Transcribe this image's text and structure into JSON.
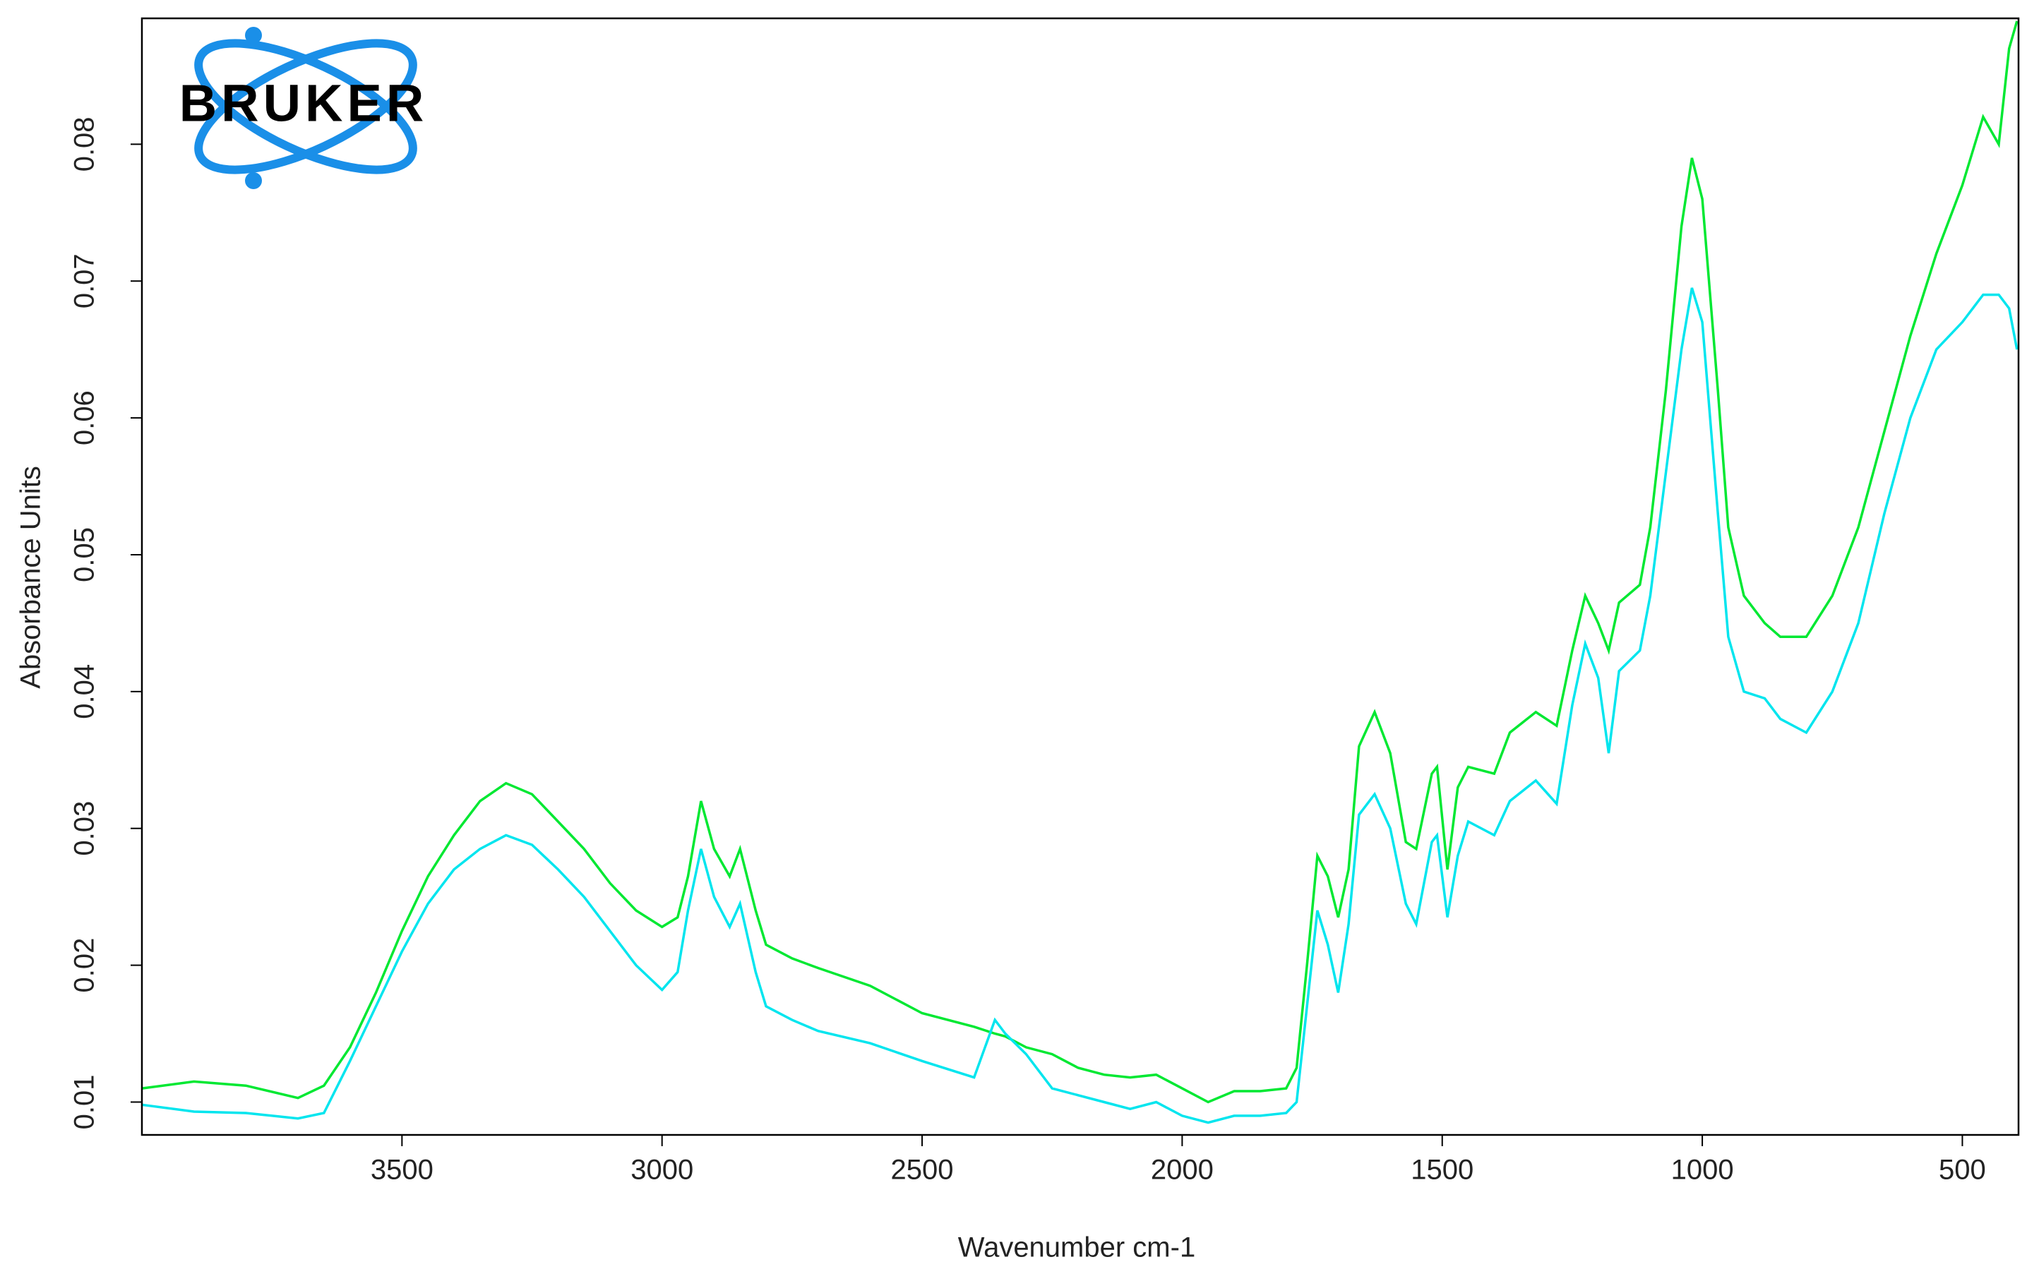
{
  "logo": {
    "text": "BRUKER"
  },
  "chart_data": {
    "type": "line",
    "xlabel": "Wavenumber cm-1",
    "ylabel": "Absorbance Units",
    "xlim": [
      4000,
      392
    ],
    "ylim": [
      0.0076,
      0.0892
    ],
    "xticks": [
      3500,
      3000,
      2500,
      2000,
      1500,
      1000,
      500
    ],
    "yticks": [
      0.01,
      0.02,
      0.03,
      0.04,
      0.05,
      0.06,
      0.07,
      0.08
    ],
    "x": [
      4000,
      3900,
      3800,
      3700,
      3650,
      3600,
      3550,
      3500,
      3450,
      3400,
      3350,
      3300,
      3250,
      3200,
      3150,
      3100,
      3050,
      3000,
      2970,
      2950,
      2925,
      2900,
      2870,
      2850,
      2820,
      2800,
      2750,
      2700,
      2600,
      2500,
      2400,
      2360,
      2340,
      2300,
      2250,
      2200,
      2150,
      2100,
      2050,
      2000,
      1950,
      1900,
      1850,
      1800,
      1780,
      1760,
      1740,
      1720,
      1700,
      1680,
      1660,
      1630,
      1600,
      1570,
      1550,
      1520,
      1510,
      1490,
      1470,
      1450,
      1400,
      1370,
      1320,
      1280,
      1250,
      1225,
      1200,
      1180,
      1160,
      1120,
      1100,
      1070,
      1040,
      1020,
      1000,
      970,
      950,
      920,
      880,
      850,
      800,
      750,
      700,
      650,
      600,
      550,
      500,
      460,
      430,
      410,
      395
    ],
    "series": [
      {
        "color": "#00e832",
        "values": [
          0.011,
          0.0115,
          0.0112,
          0.0103,
          0.0112,
          0.014,
          0.018,
          0.0225,
          0.0265,
          0.0295,
          0.032,
          0.0333,
          0.0325,
          0.0305,
          0.0285,
          0.026,
          0.024,
          0.0228,
          0.0235,
          0.0265,
          0.032,
          0.0285,
          0.0265,
          0.0285,
          0.024,
          0.0215,
          0.0205,
          0.0198,
          0.0185,
          0.0165,
          0.0155,
          0.015,
          0.0148,
          0.014,
          0.0135,
          0.0125,
          0.012,
          0.0118,
          0.012,
          0.011,
          0.01,
          0.0108,
          0.0108,
          0.011,
          0.0125,
          0.02,
          0.028,
          0.0265,
          0.0235,
          0.027,
          0.036,
          0.0385,
          0.0355,
          0.029,
          0.0285,
          0.034,
          0.0345,
          0.027,
          0.033,
          0.0345,
          0.034,
          0.037,
          0.0385,
          0.0375,
          0.043,
          0.047,
          0.045,
          0.043,
          0.0465,
          0.0478,
          0.052,
          0.062,
          0.074,
          0.079,
          0.076,
          0.062,
          0.052,
          0.047,
          0.045,
          0.044,
          0.044,
          0.047,
          0.052,
          0.059,
          0.066,
          0.072,
          0.077,
          0.082,
          0.08,
          0.087,
          0.089
        ]
      },
      {
        "color": "#00e5ee",
        "values": [
          0.0098,
          0.0093,
          0.0092,
          0.0088,
          0.0092,
          0.013,
          0.017,
          0.021,
          0.0245,
          0.027,
          0.0285,
          0.0295,
          0.0288,
          0.027,
          0.025,
          0.0225,
          0.02,
          0.0182,
          0.0195,
          0.024,
          0.0285,
          0.025,
          0.0228,
          0.0245,
          0.0195,
          0.017,
          0.016,
          0.0152,
          0.0143,
          0.013,
          0.0118,
          0.016,
          0.015,
          0.0135,
          0.011,
          0.0105,
          0.01,
          0.0095,
          0.01,
          0.009,
          0.0085,
          0.009,
          0.009,
          0.0092,
          0.01,
          0.017,
          0.024,
          0.0215,
          0.018,
          0.023,
          0.031,
          0.0325,
          0.03,
          0.0245,
          0.023,
          0.029,
          0.0295,
          0.0235,
          0.028,
          0.0305,
          0.0295,
          0.032,
          0.0335,
          0.0318,
          0.039,
          0.0435,
          0.041,
          0.0355,
          0.0415,
          0.043,
          0.047,
          0.056,
          0.065,
          0.0695,
          0.067,
          0.053,
          0.044,
          0.04,
          0.0395,
          0.038,
          0.037,
          0.04,
          0.045,
          0.053,
          0.06,
          0.065,
          0.067,
          0.069,
          0.069,
          0.068,
          0.065
        ]
      }
    ]
  }
}
